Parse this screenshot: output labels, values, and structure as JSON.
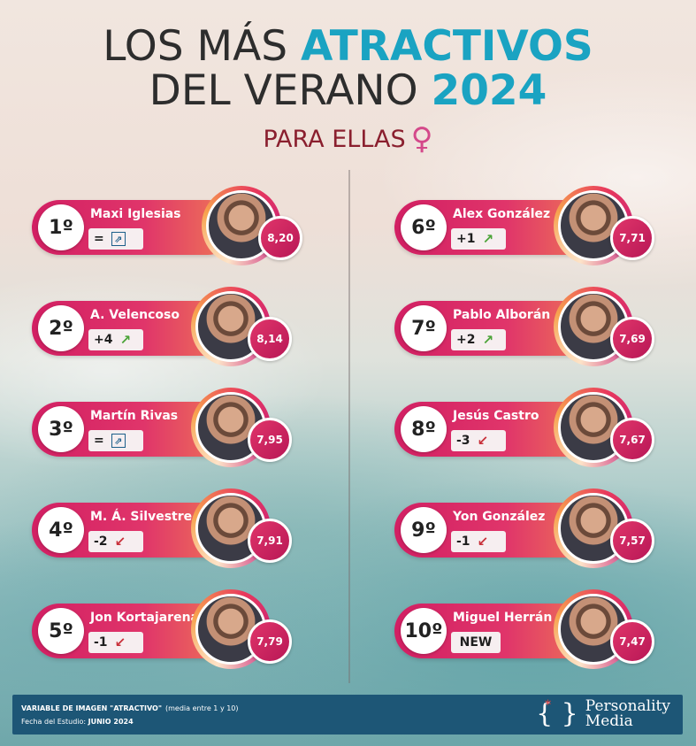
{
  "header": {
    "line1_plain": "LOS MÁS",
    "line1_accent": "ATRACTIVOS",
    "line2_plain": "DEL VERANO",
    "line2_accent": "2024",
    "subtitle": "PARA ELLAS",
    "subtitle_symbol": "♀"
  },
  "colors": {
    "accent_blue": "#1aa3c2",
    "bar_pink": "#d21f63",
    "bar_orange": "#ef7a55",
    "up_green": "#4aa337",
    "down_red": "#c8303a",
    "footer_blue": "#1d5676"
  },
  "ranking": [
    {
      "rank": "1º",
      "name": "Maxi Iglesias",
      "change": "=",
      "direction": "same",
      "score": "8,20"
    },
    {
      "rank": "2º",
      "name": "A. Velencoso",
      "change": "+4",
      "direction": "up",
      "score": "8,14"
    },
    {
      "rank": "3º",
      "name": "Martín Rivas",
      "change": "=",
      "direction": "same",
      "score": "7,95"
    },
    {
      "rank": "4º",
      "name": "M. Á. Silvestre",
      "change": "-2",
      "direction": "down",
      "score": "7,91"
    },
    {
      "rank": "5º",
      "name": "Jon Kortajarena",
      "change": "-1",
      "direction": "down",
      "score": "7,79"
    },
    {
      "rank": "6º",
      "name": "Alex González",
      "change": "+1",
      "direction": "up",
      "score": "7,71"
    },
    {
      "rank": "7º",
      "name": "Pablo Alborán",
      "change": "+2",
      "direction": "up",
      "score": "7,69"
    },
    {
      "rank": "8º",
      "name": "Jesús Castro",
      "change": "-3",
      "direction": "down",
      "score": "7,67"
    },
    {
      "rank": "9º",
      "name": "Yon González",
      "change": "-1",
      "direction": "down",
      "score": "7,57"
    },
    {
      "rank": "10º",
      "name": "Miguel Herrán",
      "change": "NEW",
      "direction": "new",
      "score": "7,47"
    }
  ],
  "footer": {
    "variable_label": "VARIABLE  DE IMAGEN \"ATRACTIVO\"",
    "variable_note": "(media  entre 1 y 10)",
    "date_label": "Fecha del Estudio:",
    "date_value": "JUNIO 2024",
    "brand_line1": "Personality",
    "brand_line2": "Media"
  }
}
